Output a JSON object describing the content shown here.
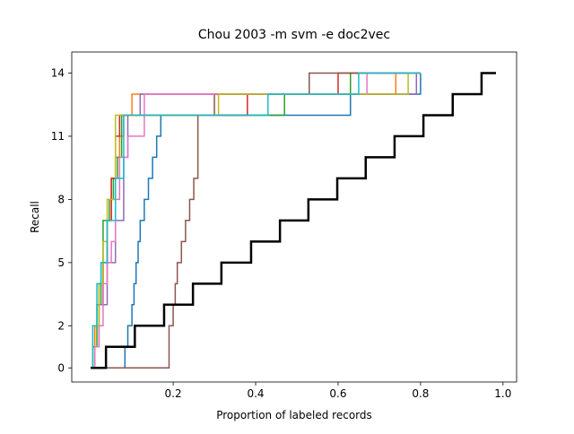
{
  "chart_data": {
    "type": "step",
    "title": "Chou 2003 -m svm -e doc2vec",
    "x_label": "Proportion of labeled records",
    "y_label": "Recall",
    "xlim": [
      -0.046,
      1.033
    ],
    "ylim": [
      -0.67,
      15
    ],
    "xticks": [
      0.2,
      0.4,
      0.6,
      0.8,
      {
        "value": 1,
        "label": "1.0"
      }
    ],
    "yticks": [
      0,
      2,
      5,
      8,
      11,
      14
    ],
    "series": [
      {
        "color": "#1f77b4",
        "x": [
          0,
          0.083,
          0.09,
          0.1,
          0.105,
          0.11,
          0.115,
          0.12,
          0.13,
          0.14,
          0.15,
          0.16,
          0.17,
          0.63,
          0.8
        ],
        "y": [
          0,
          1,
          2,
          3,
          4,
          5,
          6,
          7,
          8,
          9,
          10,
          11,
          12,
          13,
          14
        ]
      },
      {
        "color": "#ff7f0e",
        "x": [
          0,
          0.01,
          0.02,
          0.03,
          0.04,
          0.05,
          0.06,
          0.07,
          0.08,
          0.1,
          0.74,
          0.8
        ],
        "y": [
          0,
          2,
          4,
          5,
          7,
          9,
          10,
          11,
          12,
          13,
          14,
          14
        ]
      },
      {
        "color": "#2ca02c",
        "x": [
          0,
          0.005,
          0.015,
          0.025,
          0.03,
          0.045,
          0.055,
          0.065,
          0.075,
          0.47,
          0.63,
          0.8
        ],
        "y": [
          0,
          1,
          3,
          5,
          7,
          8,
          9,
          10,
          12,
          13,
          14,
          14
        ]
      },
      {
        "color": "#d62728",
        "x": [
          0,
          0.01,
          0.02,
          0.03,
          0.04,
          0.05,
          0.06,
          0.07,
          0.38,
          0.6,
          0.8
        ],
        "y": [
          0,
          1,
          3,
          5,
          7,
          9,
          11,
          12,
          13,
          14,
          14
        ]
      },
      {
        "color": "#9467bd",
        "x": [
          0,
          0.01,
          0.02,
          0.04,
          0.06,
          0.08,
          0.09,
          0.12,
          0.79,
          0.8
        ],
        "y": [
          0,
          1,
          3,
          5,
          7,
          10,
          12,
          13,
          14,
          14
        ]
      },
      {
        "color": "#8c564b",
        "x": [
          0,
          0.19,
          0.2,
          0.205,
          0.21,
          0.22,
          0.23,
          0.24,
          0.25,
          0.26,
          0.3,
          0.53,
          0.8
        ],
        "y": [
          0,
          2,
          3,
          4,
          5,
          6,
          7,
          8,
          9,
          12,
          13,
          14,
          14
        ]
      },
      {
        "color": "#e377c2",
        "x": [
          0,
          0.01,
          0.02,
          0.03,
          0.04,
          0.05,
          0.06,
          0.07,
          0.09,
          0.13,
          0.67,
          0.8
        ],
        "y": [
          0,
          1,
          2,
          4,
          5,
          6,
          8,
          10,
          11,
          13,
          14,
          14
        ]
      },
      {
        "color": "#bcbd22",
        "x": [
          0,
          0.005,
          0.02,
          0.03,
          0.04,
          0.06,
          0.31,
          0.77,
          0.8
        ],
        "y": [
          0,
          2,
          4,
          6,
          8,
          12,
          13,
          14,
          14
        ]
      },
      {
        "color": "#17becf",
        "x": [
          0,
          0.005,
          0.015,
          0.025,
          0.04,
          0.06,
          0.08,
          0.43,
          0.65,
          0.8
        ],
        "y": [
          0,
          2,
          4,
          5,
          7,
          9,
          12,
          13,
          14,
          14
        ]
      },
      {
        "color": "#000000",
        "width": 2.5,
        "x": [
          0,
          0.037,
          0.107,
          0.178,
          0.248,
          0.317,
          0.389,
          0.459,
          0.528,
          0.598,
          0.667,
          0.737,
          0.807,
          0.878,
          0.948,
          0.983
        ],
        "y": [
          0,
          1,
          2,
          3,
          4,
          5,
          6,
          7,
          8,
          9,
          10,
          11,
          12,
          13,
          14,
          14
        ]
      }
    ]
  }
}
